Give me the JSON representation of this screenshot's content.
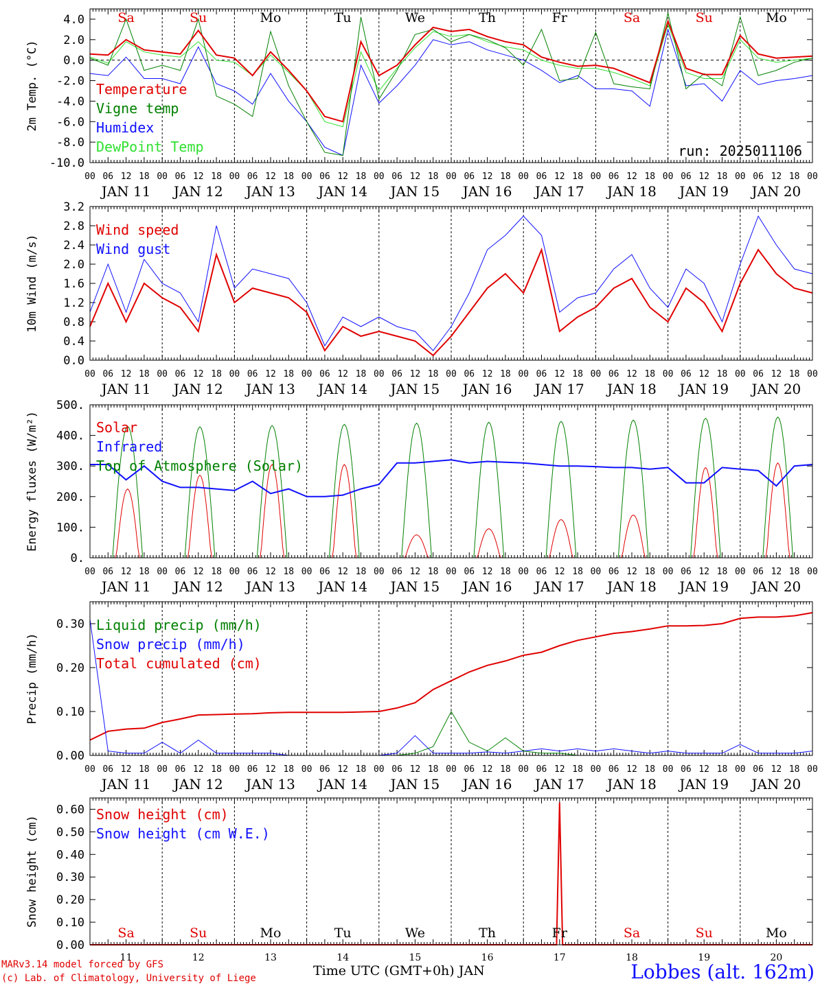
{
  "station": "Lobbes (alt. 162m)",
  "run_label": "run: 2025011106",
  "credits": {
    "line1": "MARv3.14 model forced by GFS",
    "line2": "(c) Lab. of Climatology, University of Liege"
  },
  "x_axis_title": "Time UTC (GMT+0h) JAN",
  "days": [
    {
      "date": "JAN 11",
      "num": "11",
      "weekday": "Sa",
      "weekend": true
    },
    {
      "date": "JAN 12",
      "num": "12",
      "weekday": "Su",
      "weekend": true
    },
    {
      "date": "JAN 13",
      "num": "13",
      "weekday": "Mo",
      "weekend": false
    },
    {
      "date": "JAN 14",
      "num": "14",
      "weekday": "Tu",
      "weekend": false
    },
    {
      "date": "JAN 15",
      "num": "15",
      "weekday": "We",
      "weekend": false
    },
    {
      "date": "JAN 16",
      "num": "16",
      "weekday": "Th",
      "weekend": false
    },
    {
      "date": "JAN 17",
      "num": "17",
      "weekday": "Fr",
      "weekend": false
    },
    {
      "date": "JAN 18",
      "num": "18",
      "weekday": "Sa",
      "weekend": true
    },
    {
      "date": "JAN 19",
      "num": "19",
      "weekday": "Su",
      "weekend": true
    },
    {
      "date": "JAN 20",
      "num": "20",
      "weekday": "Mo",
      "weekend": false
    }
  ],
  "hour_ticks": [
    "00",
    "06",
    "12",
    "18"
  ],
  "colors": {
    "weekend": "#e00000",
    "weekday": "#000000"
  },
  "chart_data": [
    {
      "id": "temp",
      "type": "line",
      "ylabel": "2m Temp. (°C)",
      "ylim": [
        -10,
        5
      ],
      "yticks": [
        "4.0",
        "2.0",
        "0.0",
        "-2.0",
        "-4.0",
        "-6.0",
        "-8.0",
        "-10.0"
      ],
      "ytick_values": [
        4,
        2,
        0,
        -2,
        -4,
        -6,
        -8,
        -10
      ],
      "zero_line": true,
      "x_hours": [
        0,
        6,
        12,
        18,
        24,
        30,
        36,
        42,
        48,
        54,
        60,
        66,
        72,
        78,
        84,
        90,
        96,
        102,
        108,
        114,
        120,
        126,
        132,
        138,
        144,
        150,
        156,
        162,
        168,
        174,
        180,
        186,
        192,
        198,
        204,
        210,
        216,
        222,
        228,
        234,
        240
      ],
      "series": [
        {
          "name": "Temperature",
          "color": "#e00000",
          "width": 2,
          "values": [
            0.6,
            0.5,
            2.0,
            1.0,
            0.8,
            0.6,
            2.9,
            0.5,
            0.2,
            -1.5,
            0.8,
            -1.0,
            -3.0,
            -5.5,
            -6.0,
            1.8,
            -1.5,
            -0.5,
            1.5,
            3.2,
            2.8,
            3.0,
            2.3,
            1.8,
            1.5,
            0.3,
            -0.2,
            -0.6,
            -0.5,
            -0.8,
            -1.5,
            -2.2,
            3.8,
            -0.8,
            -1.4,
            -1.4,
            2.4,
            0.6,
            0.2,
            0.3,
            0.4
          ]
        },
        {
          "name": "Vigne temp",
          "color": "#008000",
          "width": 1,
          "values": [
            0.2,
            -0.5,
            4.0,
            -1.0,
            -0.5,
            -1.0,
            4.0,
            -3.5,
            -4.3,
            -5.5,
            2.8,
            -2.5,
            -6.0,
            -9.0,
            -9.3,
            4.2,
            -3.8,
            -1.0,
            2.5,
            3.0,
            1.8,
            2.5,
            2.0,
            1.2,
            -0.5,
            3.0,
            -2.0,
            -1.8,
            2.7,
            -2.3,
            -2.6,
            -2.8,
            4.6,
            -2.8,
            -1.3,
            -2.5,
            4.2,
            -1.5,
            -1.0,
            -0.2,
            0.2
          ]
        },
        {
          "name": "Humidex",
          "color": "#1010ff",
          "width": 1,
          "values": [
            -1.3,
            -1.5,
            0.3,
            -1.8,
            -1.8,
            -2.3,
            1.3,
            -2.3,
            -3.0,
            -4.3,
            -1.3,
            -4.0,
            -6.0,
            -8.5,
            -9.3,
            -0.5,
            -4.2,
            -2.5,
            -0.5,
            2.0,
            1.5,
            1.8,
            1.0,
            0.5,
            0.0,
            -1.0,
            -2.2,
            -1.5,
            -2.8,
            -2.8,
            -3.0,
            -4.5,
            3.0,
            -2.5,
            -2.3,
            -4.0,
            -1.0,
            -2.4,
            -2.0,
            -1.8,
            -1.5
          ]
        },
        {
          "name": "DewPoint Temp",
          "color": "#30e030",
          "width": 1,
          "values": [
            0.3,
            -0.3,
            1.8,
            0.8,
            0.5,
            0.3,
            1.8,
            0.0,
            -0.2,
            -1.5,
            0.5,
            -1.2,
            -3.0,
            -6.0,
            -6.5,
            0.8,
            -3.0,
            -0.8,
            1.2,
            2.8,
            2.3,
            2.5,
            1.8,
            1.3,
            1.0,
            0.0,
            -0.5,
            -0.8,
            -0.8,
            -1.2,
            -1.8,
            -2.5,
            3.5,
            -1.2,
            -1.8,
            -1.8,
            2.0,
            0.2,
            -0.2,
            0.0,
            0.2
          ]
        }
      ]
    },
    {
      "id": "wind",
      "type": "line",
      "ylabel": "10m Wind (m/s)",
      "ylim": [
        0,
        3.2
      ],
      "yticks": [
        "3.2",
        "2.8",
        "2.4",
        "2.0",
        "1.6",
        "1.2",
        "0.8",
        "0.4",
        "0.0"
      ],
      "ytick_values": [
        3.2,
        2.8,
        2.4,
        2.0,
        1.6,
        1.2,
        0.8,
        0.4,
        0.0
      ],
      "x_hours": [
        0,
        6,
        12,
        18,
        24,
        30,
        36,
        42,
        48,
        54,
        60,
        66,
        72,
        78,
        84,
        90,
        96,
        102,
        108,
        114,
        120,
        126,
        132,
        138,
        144,
        150,
        156,
        162,
        168,
        174,
        180,
        186,
        192,
        198,
        204,
        210,
        216,
        222,
        228,
        234,
        240
      ],
      "series": [
        {
          "name": "Wind speed",
          "color": "#e00000",
          "width": 2,
          "values": [
            0.7,
            1.6,
            0.8,
            1.6,
            1.3,
            1.1,
            0.6,
            2.2,
            1.2,
            1.5,
            1.4,
            1.3,
            1.0,
            0.2,
            0.7,
            0.5,
            0.6,
            0.5,
            0.4,
            0.1,
            0.5,
            1.0,
            1.5,
            1.8,
            1.4,
            2.3,
            0.6,
            0.9,
            1.1,
            1.5,
            1.7,
            1.1,
            0.8,
            1.5,
            1.2,
            0.6,
            1.6,
            2.3,
            1.8,
            1.5,
            1.4
          ]
        },
        {
          "name": "Wind gust",
          "color": "#1010ff",
          "width": 1,
          "values": [
            1.0,
            2.0,
            1.0,
            2.1,
            1.6,
            1.4,
            0.8,
            2.8,
            1.5,
            1.9,
            1.8,
            1.7,
            1.2,
            0.3,
            0.9,
            0.7,
            0.9,
            0.7,
            0.6,
            0.2,
            0.7,
            1.4,
            2.3,
            2.6,
            3.0,
            2.6,
            1.0,
            1.3,
            1.4,
            1.9,
            2.2,
            1.5,
            1.1,
            1.9,
            1.6,
            0.8,
            2.0,
            3.0,
            2.4,
            1.9,
            1.8
          ]
        }
      ]
    },
    {
      "id": "flux",
      "type": "line",
      "ylabel": "Energy fluxes (W/m²)",
      "ylim": [
        0,
        500
      ],
      "yticks": [
        "500.",
        "400.",
        "300.",
        "200.",
        "100.",
        "0."
      ],
      "ytick_values": [
        500,
        400,
        300,
        200,
        100,
        0
      ],
      "solar_peaks": [
        225,
        270,
        305,
        305,
        75,
        95,
        125,
        140,
        295,
        310
      ],
      "toa_peaks": [
        430,
        428,
        432,
        436,
        440,
        443,
        446,
        450,
        456,
        460
      ],
      "x_hours": [
        0,
        6,
        12,
        18,
        24,
        30,
        36,
        42,
        48,
        54,
        60,
        66,
        72,
        78,
        84,
        90,
        96,
        102,
        108,
        114,
        120,
        126,
        132,
        138,
        144,
        150,
        156,
        162,
        168,
        174,
        180,
        186,
        192,
        198,
        204,
        210,
        216,
        222,
        228,
        234,
        240
      ],
      "series": [
        {
          "name": "Solar",
          "color": "#e00000",
          "width": 1
        },
        {
          "name": "Infrared",
          "color": "#1010ff",
          "width": 2,
          "values": [
            305,
            305,
            255,
            300,
            250,
            230,
            230,
            225,
            220,
            250,
            210,
            225,
            200,
            200,
            205,
            225,
            240,
            310,
            310,
            315,
            320,
            310,
            315,
            312,
            310,
            305,
            300,
            300,
            298,
            295,
            295,
            290,
            295,
            245,
            245,
            295,
            290,
            285,
            235,
            300,
            305
          ]
        },
        {
          "name": "Top of Atmosphere (Solar)",
          "color": "#008000",
          "width": 1
        }
      ]
    },
    {
      "id": "precip",
      "type": "line",
      "ylabel": "Precip (mm/h)",
      "ylim": [
        0,
        0.35
      ],
      "yticks": [
        "0.30",
        "0.20",
        "0.10",
        "0.00"
      ],
      "ytick_values": [
        0.3,
        0.2,
        0.1,
        0.0
      ],
      "x_hours": [
        0,
        6,
        12,
        18,
        24,
        30,
        36,
        42,
        48,
        54,
        60,
        66,
        72,
        78,
        84,
        90,
        96,
        102,
        108,
        114,
        120,
        126,
        132,
        138,
        144,
        150,
        156,
        162,
        168,
        174,
        180,
        186,
        192,
        198,
        204,
        210,
        216,
        222,
        228,
        234,
        240
      ],
      "series": [
        {
          "name": "Liquid precip (mm/h)",
          "color": "#008000",
          "width": 1,
          "values": [
            0,
            0,
            0,
            0,
            0,
            0,
            0,
            0,
            0,
            0,
            0,
            0,
            0,
            0,
            0,
            0,
            0,
            0,
            0.005,
            0.02,
            0.1,
            0.03,
            0.01,
            0.04,
            0.01,
            0.005,
            0.005,
            0,
            0,
            0,
            0,
            0,
            0,
            0,
            0,
            0,
            0,
            0,
            0,
            0,
            0
          ]
        },
        {
          "name": "Snow precip (mm/h)",
          "color": "#1010ff",
          "width": 1,
          "values": [
            0.31,
            0.01,
            0.005,
            0.005,
            0.03,
            0.005,
            0.035,
            0.005,
            0.005,
            0.005,
            0.005,
            0,
            0,
            0,
            0,
            0,
            0,
            0.005,
            0.045,
            0.005,
            0.005,
            0.005,
            0.008,
            0.005,
            0.01,
            0.015,
            0.01,
            0.015,
            0.01,
            0.015,
            0.01,
            0.005,
            0.01,
            0.005,
            0.005,
            0.005,
            0.025,
            0.005,
            0.005,
            0.005,
            0.01
          ]
        },
        {
          "name": "Total cumulated (cm)",
          "color": "#e00000",
          "width": 2,
          "values": [
            0.035,
            0.055,
            0.06,
            0.062,
            0.075,
            0.083,
            0.092,
            0.093,
            0.094,
            0.095,
            0.097,
            0.098,
            0.098,
            0.098,
            0.098,
            0.099,
            0.1,
            0.108,
            0.12,
            0.15,
            0.17,
            0.19,
            0.205,
            0.215,
            0.228,
            0.235,
            0.25,
            0.262,
            0.27,
            0.278,
            0.282,
            0.288,
            0.295,
            0.295,
            0.296,
            0.3,
            0.312,
            0.315,
            0.315,
            0.318,
            0.325
          ]
        }
      ]
    },
    {
      "id": "snow",
      "type": "line",
      "ylabel": "Snow height (cm)",
      "ylim": [
        0,
        0.65
      ],
      "yticks": [
        "0.60",
        "0.50",
        "0.40",
        "0.30",
        "0.20",
        "0.10",
        "0.00"
      ],
      "ytick_values": [
        0.6,
        0.5,
        0.4,
        0.3,
        0.2,
        0.1,
        0.0
      ],
      "x_hours": [
        0,
        155,
        156,
        157,
        240
      ],
      "series": [
        {
          "name": "Snow height (cm)",
          "color": "#e00000",
          "width": 2,
          "values": [
            0,
            0,
            0.63,
            0,
            0
          ]
        },
        {
          "name": "Snow height (cm W.E.)",
          "color": "#1010ff",
          "width": 1,
          "values": [
            0,
            0,
            0,
            0,
            0
          ]
        }
      ]
    }
  ]
}
